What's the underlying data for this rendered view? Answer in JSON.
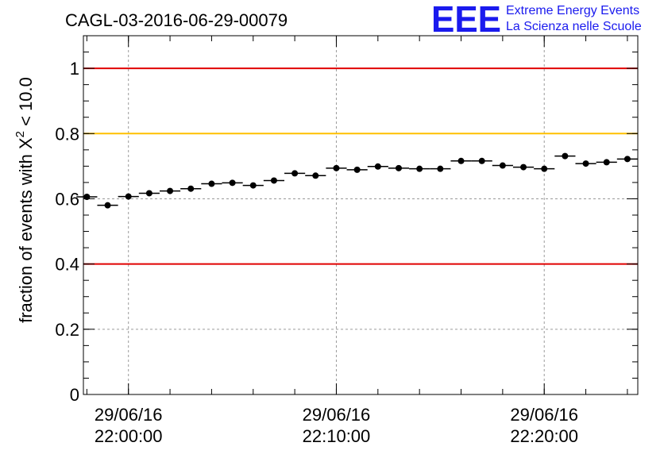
{
  "logo": {
    "mark": "EEE",
    "line1": "Extreme Energy Events",
    "line2": "La Scienza nelle Scuole",
    "color": "#1a1aee"
  },
  "chart_data": {
    "type": "scatter",
    "title": "CAGL-03-2016-06-29-00079",
    "ylabel_main": "fraction of events with X",
    "ylabel_sup": "2",
    "ylabel_tail": " < 10.0",
    "ylim": [
      0,
      1.1
    ],
    "y_ticks": [
      "0",
      "0.2",
      "0.4",
      "0.6",
      "0.8",
      "1"
    ],
    "x_tick_labels": [
      {
        "date": "29/06/16",
        "time": "22:00:00"
      },
      {
        "date": "29/06/16",
        "time": "22:10:00"
      },
      {
        "date": "29/06/16",
        "time": "22:20:00"
      }
    ],
    "x_start": "29/06/16 21:57:50",
    "x_end": "29/06/16 22:24:30",
    "bin_minutes": 1,
    "grid": true,
    "reference_lines": [
      {
        "y": 1.0,
        "color": "#e00000"
      },
      {
        "y": 0.8,
        "color": "#ffc000"
      },
      {
        "y": 0.4,
        "color": "#e00000"
      }
    ],
    "series": [
      {
        "x": [
          "21:58:00",
          "21:59:00",
          "22:00:00",
          "22:01:00",
          "22:02:00",
          "22:03:00",
          "22:04:00",
          "22:05:00",
          "22:06:00",
          "22:07:00",
          "22:08:00",
          "22:09:00",
          "22:10:00",
          "22:11:00",
          "22:12:00",
          "22:13:00",
          "22:14:00",
          "22:15:00",
          "22:16:00",
          "22:17:00",
          "22:18:00",
          "22:19:00",
          "22:20:00",
          "22:21:00",
          "22:22:00",
          "22:23:00",
          "22:24:00"
        ],
        "values": [
          0.606,
          0.58,
          0.607,
          0.617,
          0.624,
          0.631,
          0.646,
          0.649,
          0.641,
          0.656,
          0.678,
          0.671,
          0.694,
          0.689,
          0.699,
          0.694,
          0.692,
          0.692,
          0.716,
          0.716,
          0.702,
          0.697,
          0.692,
          0.731,
          0.708,
          0.712,
          0.722
        ],
        "errors": [
          0.007,
          0.007,
          0.007,
          0.007,
          0.007,
          0.007,
          0.007,
          0.007,
          0.007,
          0.007,
          0.007,
          0.007,
          0.007,
          0.007,
          0.007,
          0.007,
          0.007,
          0.007,
          0.007,
          0.007,
          0.007,
          0.007,
          0.007,
          0.007,
          0.007,
          0.007,
          0.007
        ],
        "color": "#000000"
      }
    ]
  }
}
